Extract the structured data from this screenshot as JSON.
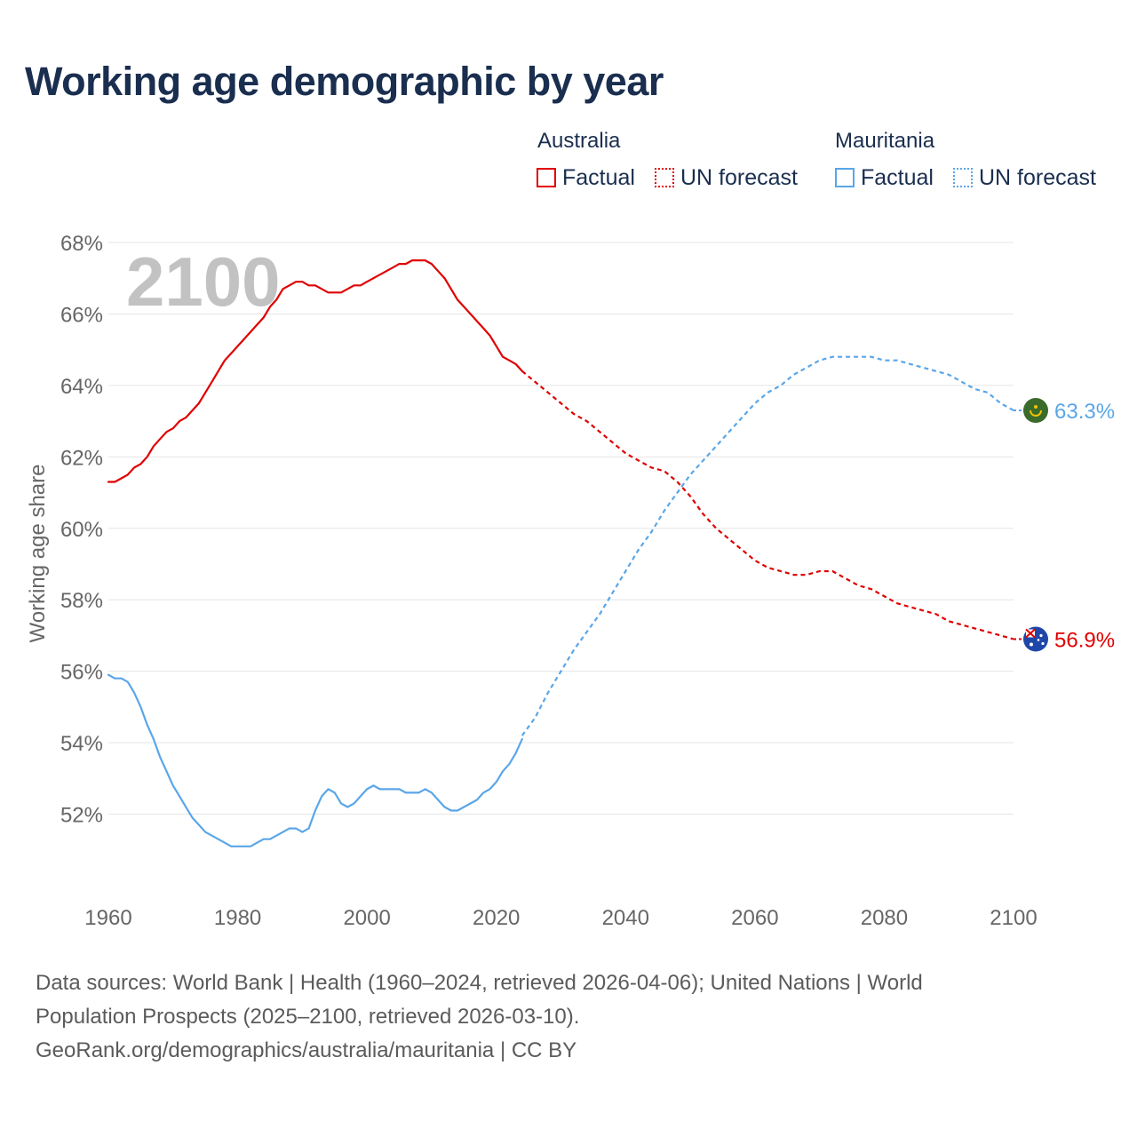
{
  "title": "Working age demographic by year",
  "year_overlay": "2100",
  "legend": {
    "australia": {
      "name": "Australia",
      "factual": "Factual",
      "forecast": "UN forecast"
    },
    "mauritania": {
      "name": "Mauritania",
      "factual": "Factual",
      "forecast": "UN forecast"
    }
  },
  "source": {
    "line1": "Data sources: World Bank | Health (1960–2024, retrieved 2026-04-06); United Nations | World",
    "line2": "Population Prospects (2025–2100, retrieved 2026-03-10).",
    "line3": "GeoRank.org/demographics/australia/mauritania | CC BY"
  },
  "colors": {
    "australia": "#e00000",
    "mauritania": "#5aa6e8",
    "grid": "#e5e5e5",
    "axis_text": "#666666",
    "overlay": "#c2c2c2"
  },
  "chart_data": {
    "type": "line",
    "title": "Working age demographic by year",
    "xlabel": "",
    "ylabel": "Working age share",
    "xlim": [
      1960,
      2100
    ],
    "ylim": [
      50,
      68
    ],
    "x_ticks": [
      "1960",
      "1980",
      "2000",
      "2020",
      "2040",
      "2060",
      "2080",
      "2100"
    ],
    "y_ticks": [
      "52%",
      "54%",
      "56%",
      "58%",
      "60%",
      "62%",
      "64%",
      "66%",
      "68%"
    ],
    "y_tick_values": [
      52,
      54,
      56,
      58,
      60,
      62,
      64,
      66,
      68
    ],
    "forecast_start": 2024,
    "series": [
      {
        "name": "Australia",
        "color": "#e00000",
        "end_label": "56.9%",
        "factual": {
          "x": [
            1960,
            1961,
            1962,
            1963,
            1964,
            1965,
            1966,
            1967,
            1968,
            1969,
            1970,
            1971,
            1972,
            1973,
            1974,
            1975,
            1976,
            1977,
            1978,
            1979,
            1980,
            1981,
            1982,
            1983,
            1984,
            1985,
            1986,
            1987,
            1988,
            1989,
            1990,
            1991,
            1992,
            1993,
            1994,
            1995,
            1996,
            1997,
            1998,
            1999,
            2000,
            2001,
            2002,
            2003,
            2004,
            2005,
            2006,
            2007,
            2008,
            2009,
            2010,
            2011,
            2012,
            2013,
            2014,
            2015,
            2016,
            2017,
            2018,
            2019,
            2020,
            2021,
            2022,
            2023,
            2024
          ],
          "y": [
            61.3,
            61.3,
            61.4,
            61.5,
            61.7,
            61.8,
            62.0,
            62.3,
            62.5,
            62.7,
            62.8,
            63.0,
            63.1,
            63.3,
            63.5,
            63.8,
            64.1,
            64.4,
            64.7,
            64.9,
            65.1,
            65.3,
            65.5,
            65.7,
            65.9,
            66.2,
            66.4,
            66.7,
            66.8,
            66.9,
            66.9,
            66.8,
            66.8,
            66.7,
            66.6,
            66.6,
            66.6,
            66.7,
            66.8,
            66.8,
            66.9,
            67.0,
            67.1,
            67.2,
            67.3,
            67.4,
            67.4,
            67.5,
            67.5,
            67.5,
            67.4,
            67.2,
            67.0,
            66.7,
            66.4,
            66.2,
            66.0,
            65.8,
            65.6,
            65.4,
            65.1,
            64.8,
            64.7,
            64.6,
            64.4
          ]
        },
        "forecast": {
          "x": [
            2024,
            2026,
            2028,
            2030,
            2032,
            2034,
            2036,
            2038,
            2040,
            2042,
            2044,
            2046,
            2048,
            2050,
            2052,
            2054,
            2056,
            2058,
            2060,
            2062,
            2064,
            2066,
            2068,
            2070,
            2072,
            2074,
            2076,
            2078,
            2080,
            2082,
            2084,
            2086,
            2088,
            2090,
            2092,
            2094,
            2096,
            2098,
            2100
          ],
          "y": [
            64.4,
            64.1,
            63.8,
            63.5,
            63.2,
            63.0,
            62.7,
            62.4,
            62.1,
            61.9,
            61.7,
            61.6,
            61.3,
            60.9,
            60.4,
            60.0,
            59.7,
            59.4,
            59.1,
            58.9,
            58.8,
            58.7,
            58.7,
            58.8,
            58.8,
            58.6,
            58.4,
            58.3,
            58.1,
            57.9,
            57.8,
            57.7,
            57.6,
            57.4,
            57.3,
            57.2,
            57.1,
            57.0,
            56.9
          ]
        }
      },
      {
        "name": "Mauritania",
        "color": "#5aa6e8",
        "end_label": "63.3%",
        "factual": {
          "x": [
            1960,
            1961,
            1962,
            1963,
            1964,
            1965,
            1966,
            1967,
            1968,
            1969,
            1970,
            1971,
            1972,
            1973,
            1974,
            1975,
            1976,
            1977,
            1978,
            1979,
            1980,
            1981,
            1982,
            1983,
            1984,
            1985,
            1986,
            1987,
            1988,
            1989,
            1990,
            1991,
            1992,
            1993,
            1994,
            1995,
            1996,
            1997,
            1998,
            1999,
            2000,
            2001,
            2002,
            2003,
            2004,
            2005,
            2006,
            2007,
            2008,
            2009,
            2010,
            2011,
            2012,
            2013,
            2014,
            2015,
            2016,
            2017,
            2018,
            2019,
            2020,
            2021,
            2022,
            2023,
            2024
          ],
          "y": [
            55.9,
            55.8,
            55.8,
            55.7,
            55.4,
            55.0,
            54.5,
            54.1,
            53.6,
            53.2,
            52.8,
            52.5,
            52.2,
            51.9,
            51.7,
            51.5,
            51.4,
            51.3,
            51.2,
            51.1,
            51.1,
            51.1,
            51.1,
            51.2,
            51.3,
            51.3,
            51.4,
            51.5,
            51.6,
            51.6,
            51.5,
            51.6,
            52.1,
            52.5,
            52.7,
            52.6,
            52.3,
            52.2,
            52.3,
            52.5,
            52.7,
            52.8,
            52.7,
            52.7,
            52.7,
            52.7,
            52.6,
            52.6,
            52.6,
            52.7,
            52.6,
            52.4,
            52.2,
            52.1,
            52.1,
            52.2,
            52.3,
            52.4,
            52.6,
            52.7,
            52.9,
            53.2,
            53.4,
            53.7,
            54.1
          ]
        },
        "forecast": {
          "x": [
            2024,
            2026,
            2028,
            2030,
            2032,
            2034,
            2036,
            2038,
            2040,
            2042,
            2044,
            2046,
            2048,
            2050,
            2052,
            2054,
            2056,
            2058,
            2060,
            2062,
            2064,
            2066,
            2068,
            2070,
            2072,
            2074,
            2076,
            2078,
            2080,
            2082,
            2084,
            2086,
            2088,
            2090,
            2092,
            2094,
            2096,
            2098,
            2100
          ],
          "y": [
            54.2,
            54.7,
            55.4,
            56.0,
            56.6,
            57.1,
            57.6,
            58.2,
            58.8,
            59.4,
            59.9,
            60.5,
            61.0,
            61.5,
            61.9,
            62.3,
            62.7,
            63.1,
            63.5,
            63.8,
            64.0,
            64.3,
            64.5,
            64.7,
            64.8,
            64.8,
            64.8,
            64.8,
            64.7,
            64.7,
            64.6,
            64.5,
            64.4,
            64.3,
            64.1,
            63.9,
            63.8,
            63.5,
            63.3
          ]
        }
      }
    ]
  }
}
